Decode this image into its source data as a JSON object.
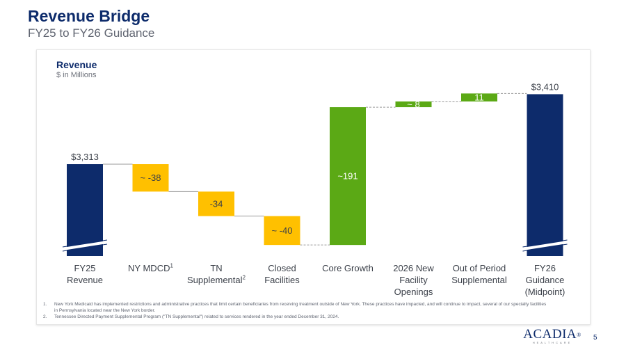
{
  "page": {
    "title": "Revenue Bridge",
    "subtitle": "FY25 to FY26 Guidance",
    "panel_label": "Revenue",
    "panel_unit": "$ in Millions",
    "footnotes": [
      {
        "num": "1.",
        "text": "New York Medicaid has implemented restrictions and administrative practices that limit certain beneficiaries from receiving treatment outside of New York. These practices have impacted, and will continue to impact, several of our specialty facilities in Pennsylvania located near the New York border."
      },
      {
        "num": "2.",
        "text": "Tennessee Directed Payment Supplemental Program (\"TN Supplemental\") related to services rendered in the year ended December 31, 2024."
      }
    ],
    "logo_text": "ACADIA",
    "logo_mark": "®",
    "logo_subtext": "HEALTHCARE",
    "page_number": "5"
  },
  "colors": {
    "total": "#0d2b6b",
    "decrease": "#ffc000",
    "increase": "#5ba915",
    "connector": "#9a9a9a"
  },
  "chart_data": {
    "type": "bar",
    "subtype": "waterfall",
    "title": "Revenue",
    "ylabel": "$ in Millions",
    "axis_break": true,
    "categories": [
      {
        "label": "FY25",
        "label2": "Revenue",
        "sup": ""
      },
      {
        "label": "NY MDCD",
        "label2": "",
        "sup": "1"
      },
      {
        "label": "TN",
        "label2": "Supplemental",
        "sup": "2"
      },
      {
        "label": "Closed",
        "label2": "Facilities",
        "sup": ""
      },
      {
        "label": "Core Growth",
        "label2": "",
        "sup": ""
      },
      {
        "label": "2026 New",
        "label2": "Facility",
        "label3": "Openings",
        "sup": ""
      },
      {
        "label": "Out of Period",
        "label2": "Supplemental",
        "sup": ""
      },
      {
        "label": "FY26",
        "label2": "Guidance",
        "label3": "(Midpoint)",
        "sup": ""
      }
    ],
    "bars": [
      {
        "kind": "total",
        "value": 3313,
        "label": "$3,313"
      },
      {
        "kind": "decrease",
        "value": -38,
        "label": "~ -38"
      },
      {
        "kind": "decrease",
        "value": -34,
        "label": "-34"
      },
      {
        "kind": "decrease",
        "value": -40,
        "label": "~ -40"
      },
      {
        "kind": "increase",
        "value": 191,
        "label": "~191"
      },
      {
        "kind": "increase",
        "value": 8,
        "label": "~ 8"
      },
      {
        "kind": "increase",
        "value": 11,
        "label": "11"
      },
      {
        "kind": "total",
        "value": 3410,
        "label": "$3,410"
      }
    ]
  }
}
